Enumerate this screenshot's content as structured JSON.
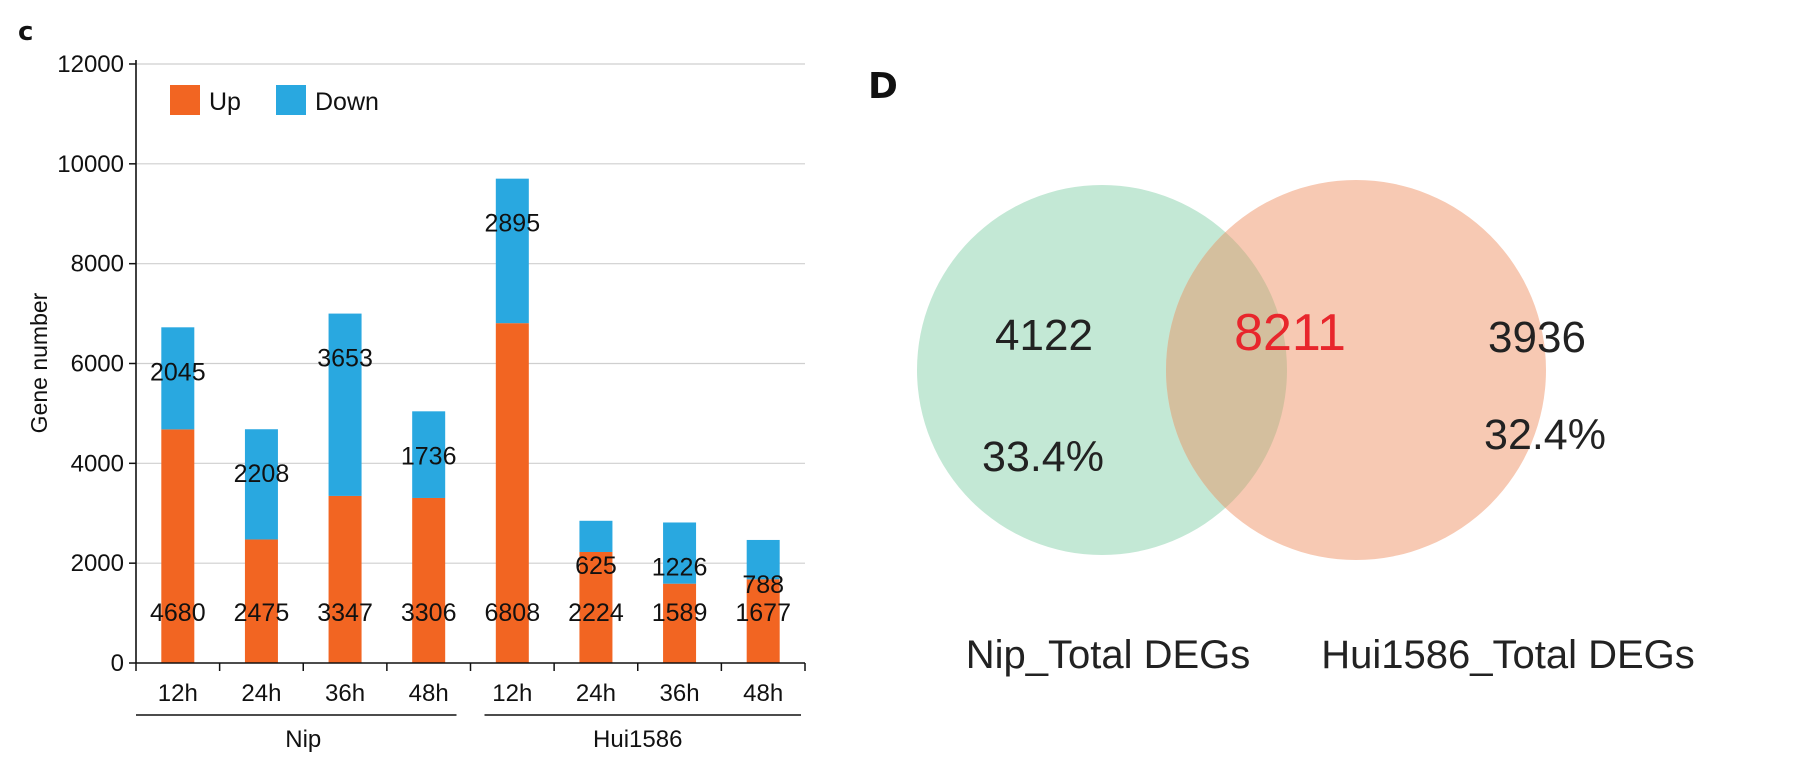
{
  "panels": {
    "left_label": "c",
    "right_label": "D"
  },
  "chart_data": [
    {
      "type": "bar",
      "stacked": true,
      "ylabel": "Gene number",
      "ylim": [
        0,
        12000
      ],
      "yticks": [
        0,
        2000,
        4000,
        6000,
        8000,
        10000,
        12000
      ],
      "grid": "horizontal",
      "legend_position": "top-left",
      "categories": [
        "12h",
        "24h",
        "36h",
        "48h",
        "12h",
        "24h",
        "36h",
        "48h"
      ],
      "groups": [
        {
          "name": "Nip",
          "categories": [
            "12h",
            "24h",
            "36h",
            "48h"
          ]
        },
        {
          "name": "Hui1586",
          "categories": [
            "12h",
            "24h",
            "36h",
            "48h"
          ]
        }
      ],
      "series": [
        {
          "name": "Up",
          "color": "#f26522",
          "values": [
            4680,
            2475,
            3347,
            3306,
            6808,
            2224,
            1589,
            1677
          ]
        },
        {
          "name": "Down",
          "color": "#29a8e0",
          "values": [
            2045,
            2208,
            3653,
            1736,
            2895,
            625,
            1226,
            788
          ]
        }
      ]
    },
    {
      "type": "venn",
      "sets": [
        {
          "name": "Nip_Total DEGs",
          "only_count": "4122",
          "only_percent": "33.4%",
          "color": "#c3e8d5"
        },
        {
          "name": "Hui1586_Total DEGs",
          "only_count": "3936",
          "only_percent": "32.4%",
          "color": "#f7c9b3"
        }
      ],
      "intersection": {
        "count": "8211",
        "color": "#d4bf9e"
      }
    }
  ]
}
